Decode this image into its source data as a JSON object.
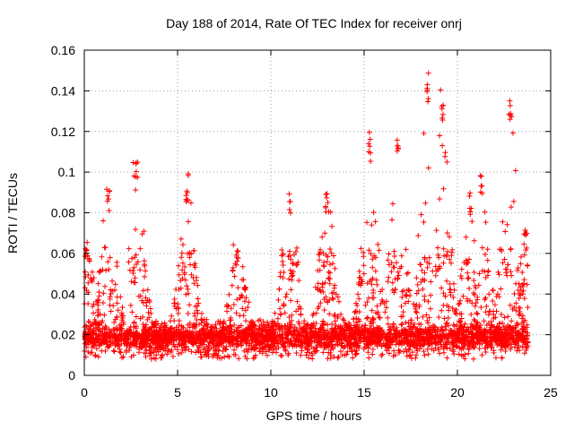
{
  "chart_data": {
    "type": "scatter",
    "title": "Day 188 of 2014, Rate Of TEC Index for receiver onrj",
    "xlabel": "GPS time / hours",
    "ylabel": "ROTI / TECUs",
    "xlim": [
      0,
      25
    ],
    "ylim": [
      0,
      0.16
    ],
    "xticks": [
      0,
      5,
      10,
      15,
      20,
      25
    ],
    "yticks": [
      0,
      0.02,
      0.04,
      0.06,
      0.08,
      0.1,
      0.12,
      0.14,
      0.16
    ],
    "xtick_labels": [
      "0",
      "5",
      "10",
      "15",
      "20",
      "25"
    ],
    "ytick_labels": [
      "0",
      "0.02",
      "0.04",
      "0.06",
      "0.08",
      "0.1",
      "0.12",
      "0.14",
      "0.16"
    ],
    "grid": true,
    "marker": "+",
    "color": "#ff0000",
    "series": [
      {
        "name": "ROTI",
        "x_range": [
          0,
          23.8
        ],
        "baseline": 0.017,
        "spikes": [
          {
            "x": 0.1,
            "y": 0.067
          },
          {
            "x": 1.3,
            "y": 0.092
          },
          {
            "x": 2.8,
            "y": 0.108
          },
          {
            "x": 5.5,
            "y": 0.094
          },
          {
            "x": 8.2,
            "y": 0.062
          },
          {
            "x": 11.0,
            "y": 0.091
          },
          {
            "x": 13.0,
            "y": 0.09
          },
          {
            "x": 15.3,
            "y": 0.117
          },
          {
            "x": 16.8,
            "y": 0.118
          },
          {
            "x": 18.4,
            "y": 0.146
          },
          {
            "x": 19.2,
            "y": 0.136
          },
          {
            "x": 20.7,
            "y": 0.09
          },
          {
            "x": 21.3,
            "y": 0.1
          },
          {
            "x": 22.8,
            "y": 0.138
          },
          {
            "x": 23.7,
            "y": 0.071
          }
        ]
      }
    ]
  }
}
